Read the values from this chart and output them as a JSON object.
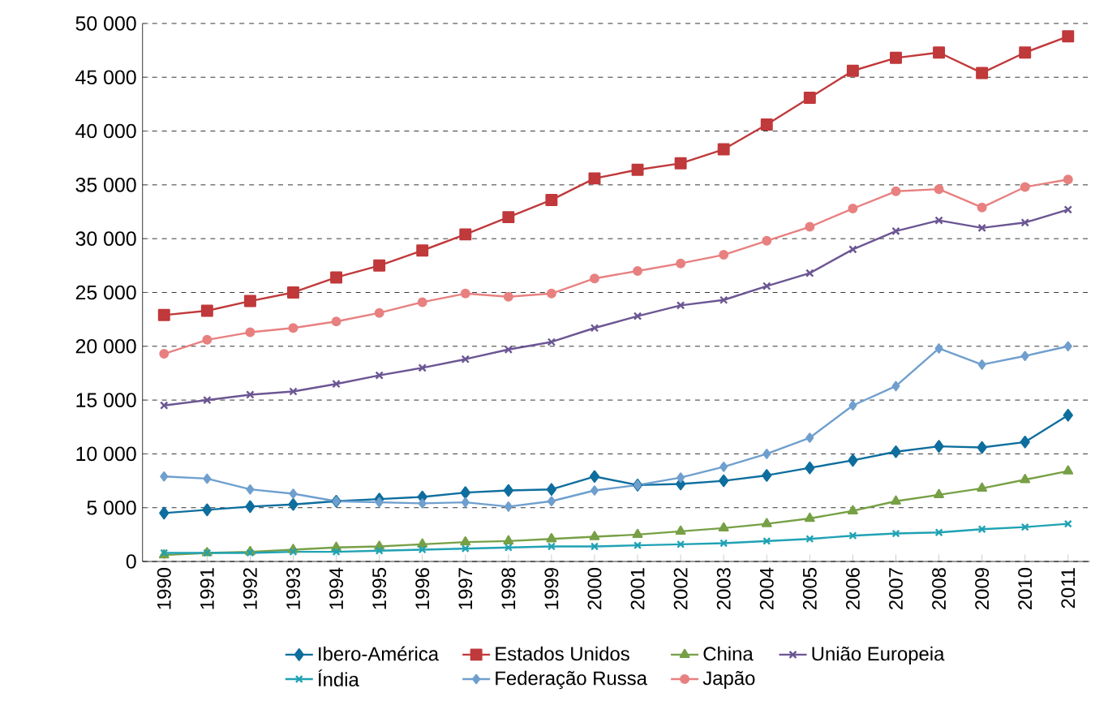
{
  "chart_data": {
    "type": "line",
    "categories": [
      "1990",
      "1991",
      "1992",
      "1993",
      "1994",
      "1995",
      "1996",
      "1997",
      "1998",
      "1999",
      "2000",
      "2001",
      "2002",
      "2003",
      "2004",
      "2005",
      "2006",
      "2007",
      "2008",
      "2009",
      "2010",
      "2011"
    ],
    "series": [
      {
        "name": "Ibero-América",
        "color": "#0e6e9e",
        "marker": "diamond",
        "values": [
          4500,
          4800,
          5100,
          5300,
          5600,
          5800,
          6000,
          6400,
          6600,
          6700,
          7900,
          7100,
          7200,
          7500,
          8000,
          8700,
          9400,
          10200,
          10700,
          10600,
          11100,
          13600
        ]
      },
      {
        "name": "Estados Unidos",
        "color": "#c0393b",
        "marker": "square",
        "values": [
          22900,
          23300,
          24200,
          25000,
          26400,
          27500,
          28900,
          30400,
          32000,
          33600,
          35600,
          36400,
          37000,
          38300,
          40600,
          43100,
          45600,
          46800,
          47300,
          45400,
          47300,
          48800
        ]
      },
      {
        "name": "China",
        "color": "#77a046",
        "marker": "triangle",
        "values": [
          600,
          800,
          900,
          1100,
          1300,
          1400,
          1600,
          1800,
          1900,
          2100,
          2300,
          2500,
          2800,
          3100,
          3500,
          4000,
          4700,
          5600,
          6200,
          6800,
          7600,
          8400
        ]
      },
      {
        "name": "União Europeia",
        "color": "#6b5693",
        "marker": "cross",
        "values": [
          14500,
          15000,
          15500,
          15800,
          16500,
          17300,
          18000,
          18800,
          19700,
          20400,
          21700,
          22800,
          23800,
          24300,
          25600,
          26800,
          29000,
          30700,
          31700,
          31000,
          31500,
          32700
        ]
      },
      {
        "name": "Índia",
        "color": "#1fa2b4",
        "marker": "cross",
        "values": [
          800,
          800,
          800,
          900,
          900,
          1000,
          1100,
          1200,
          1300,
          1400,
          1400,
          1500,
          1600,
          1700,
          1900,
          2100,
          2400,
          2600,
          2700,
          3000,
          3200,
          3500
        ]
      },
      {
        "name": "Federação Russa",
        "color": "#6f9fce",
        "marker": "diamond",
        "values": [
          7900,
          7700,
          6700,
          6300,
          5600,
          5500,
          5400,
          5500,
          5100,
          5600,
          6600,
          7100,
          7800,
          8800,
          10000,
          11500,
          14500,
          16300,
          19800,
          18300,
          19100,
          20000
        ]
      },
      {
        "name": "Japão",
        "color": "#e88080",
        "marker": "circle",
        "values": [
          19300,
          20600,
          21300,
          21700,
          22300,
          23100,
          24100,
          24900,
          24600,
          24900,
          26300,
          27000,
          27700,
          28500,
          29800,
          31100,
          32800,
          34400,
          34600,
          32900,
          34800,
          35500
        ]
      }
    ],
    "ylim": [
      0,
      50000
    ],
    "yticks": [
      {
        "value": 0,
        "label": "0"
      },
      {
        "value": 5000,
        "label": "5 000"
      },
      {
        "value": 10000,
        "label": "10 000"
      },
      {
        "value": 15000,
        "label": "15 000"
      },
      {
        "value": 20000,
        "label": "20 000"
      },
      {
        "value": 25000,
        "label": "25 000"
      },
      {
        "value": 30000,
        "label": "30 000"
      },
      {
        "value": 35000,
        "label": "35 000"
      },
      {
        "value": 40000,
        "label": "40 000"
      },
      {
        "value": 45000,
        "label": "45 000"
      },
      {
        "value": 50000,
        "label": "50 000"
      }
    ],
    "grid": "y",
    "legend": "bottom",
    "line_style": "solid"
  }
}
